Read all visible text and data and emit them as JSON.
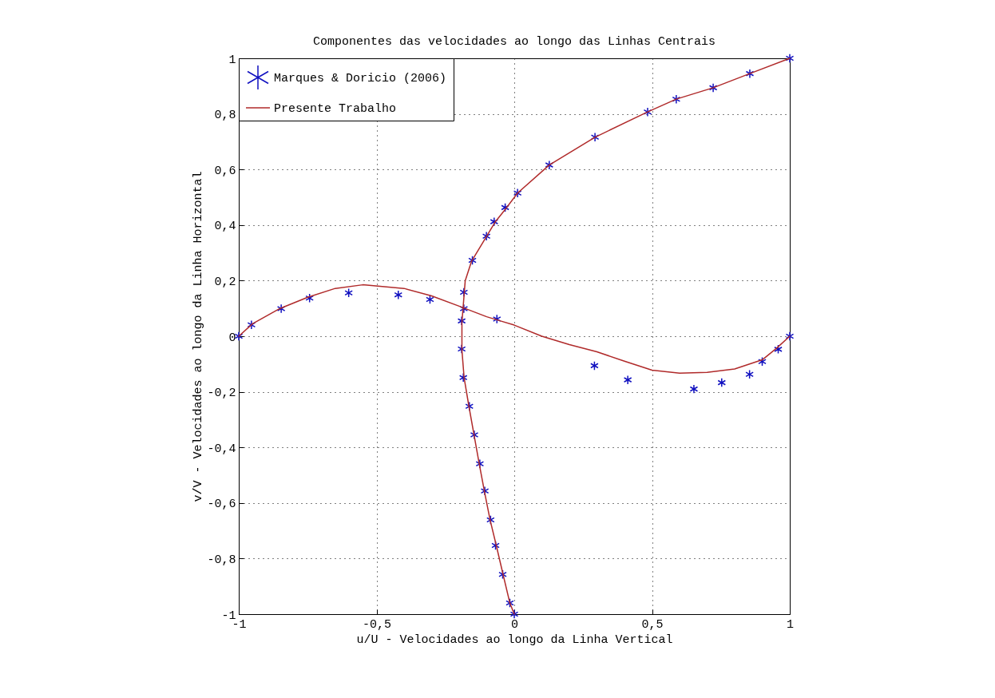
{
  "chart_data": {
    "type": "scatter",
    "title": "Componentes das velocidades ao longo das Linhas Centrais",
    "xlabel": "u/U - Velocidades ao longo da Linha Vertical",
    "ylabel": "v/V - Velocidades ao longo da Linha Horizontal",
    "xlim": [
      -1,
      1
    ],
    "ylim": [
      -1,
      1
    ],
    "xticks": [
      -1,
      {
        "value": -0.5,
        "label": "-0,5"
      },
      0,
      {
        "value": 0.5,
        "label": "0,5"
      },
      1
    ],
    "yticks": [
      -1,
      {
        "value": -0.8,
        "label": "-0,8"
      },
      {
        "value": -0.6,
        "label": "-0,6"
      },
      {
        "value": -0.4,
        "label": "-0,4"
      },
      {
        "value": -0.2,
        "label": "-0,2"
      },
      0,
      {
        "value": 0.2,
        "label": "0,2"
      },
      {
        "value": 0.4,
        "label": "0,4"
      },
      {
        "value": 0.6,
        "label": "0,6"
      },
      {
        "value": 0.8,
        "label": "0,8"
      },
      1
    ],
    "grid": true,
    "legend": "top left",
    "series": [
      {
        "type": "scatter",
        "name": "Marques & Doricio (2006)",
        "color": "#1010c0",
        "marker": "cross",
        "x": [
          0,
          -0.016,
          -0.042,
          -0.068,
          -0.086,
          -0.107,
          -0.125,
          -0.145,
          -0.163,
          -0.185,
          -0.191,
          -0.191,
          -0.183,
          -0.152,
          -0.101,
          -0.073,
          -0.033,
          0.012,
          0.127,
          0.293,
          0.484,
          0.588,
          0.722,
          0.855,
          1,
          -1,
          -0.954,
          -0.846,
          -0.743,
          -0.601,
          -0.421,
          -0.306,
          -0.063,
          0.291,
          0.412,
          0.652,
          0.753,
          0.854,
          0.9,
          0.958,
          1,
          -0.183
        ],
        "values": [
          -1,
          -0.96,
          -0.857,
          -0.753,
          -0.661,
          -0.557,
          -0.459,
          -0.355,
          -0.252,
          -0.149,
          -0.046,
          0.055,
          0.158,
          0.273,
          0.36,
          0.412,
          0.463,
          0.515,
          0.616,
          0.716,
          0.807,
          0.853,
          0.894,
          0.945,
          1,
          0,
          0.041,
          0.099,
          0.137,
          0.156,
          0.149,
          0.132,
          0.062,
          -0.106,
          -0.157,
          -0.19,
          -0.167,
          -0.137,
          -0.091,
          -0.047,
          0,
          0.099
        ]
      },
      {
        "type": "line",
        "name": "Presente Trabalho",
        "color": "#b02a2a",
        "x": [
          0,
          -0.016,
          -0.04,
          -0.066,
          -0.088,
          -0.108,
          -0.127,
          -0.146,
          -0.165,
          -0.182,
          -0.19,
          -0.19,
          -0.186,
          -0.178,
          -0.155,
          -0.1,
          -0.07,
          -0.03,
          0.012,
          0.127,
          0.293,
          0.484,
          0.588,
          0.722,
          0.855,
          1
        ],
        "values": [
          -1,
          -0.96,
          -0.86,
          -0.75,
          -0.66,
          -0.56,
          -0.46,
          -0.355,
          -0.25,
          -0.15,
          -0.05,
          0.05,
          0.1,
          0.2,
          0.27,
          0.36,
          0.41,
          0.46,
          0.515,
          0.616,
          0.716,
          0.807,
          0.853,
          0.894,
          0.945,
          1
        ]
      },
      {
        "type": "line",
        "color": "#b02a2a",
        "x": [
          -1,
          -0.95,
          -0.85,
          -0.75,
          -0.65,
          -0.55,
          -0.4,
          -0.3,
          -0.2,
          -0.1,
          -0.05,
          0,
          0.1,
          0.2,
          0.3,
          0.4,
          0.5,
          0.6,
          0.7,
          0.8,
          0.9,
          0.95,
          1
        ],
        "values": [
          0,
          0.045,
          0.1,
          0.14,
          0.172,
          0.185,
          0.172,
          0.145,
          0.108,
          0.07,
          0.055,
          0.04,
          0,
          -0.03,
          -0.056,
          -0.09,
          -0.122,
          -0.133,
          -0.13,
          -0.118,
          -0.085,
          -0.045,
          0
        ]
      }
    ]
  }
}
